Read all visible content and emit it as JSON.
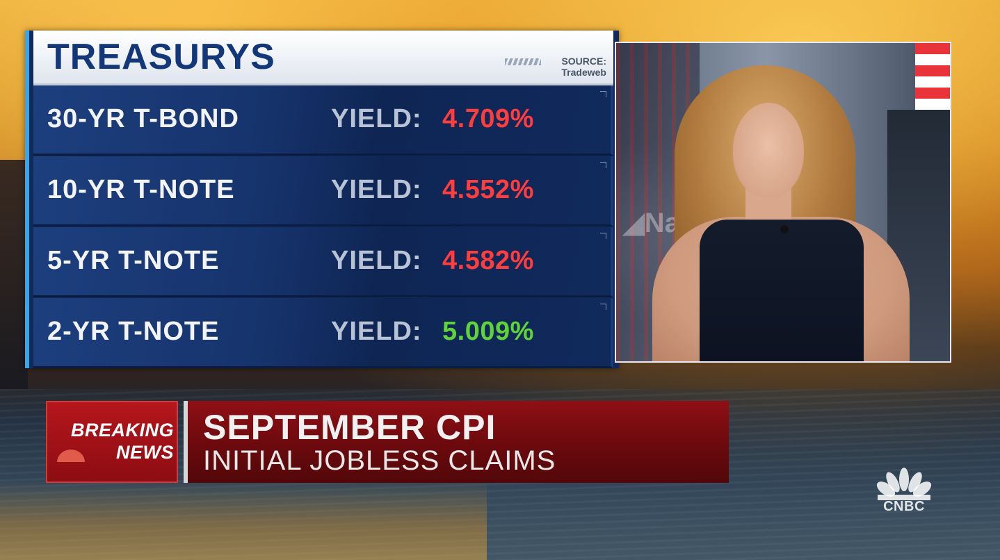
{
  "treasurys": {
    "title": "TREASURYS",
    "source_label": "SOURCE:",
    "source_name": "Tradeweb",
    "yield_label": "YIELD:",
    "rows": [
      {
        "name": "30-YR T-BOND",
        "yield_label": "YIELD:",
        "value": "4.709%",
        "direction": "down",
        "color": "#ff3d3d"
      },
      {
        "name": "10-YR T-NOTE",
        "yield_label": "YIELD:",
        "value": "4.552%",
        "direction": "down",
        "color": "#ff3d3d"
      },
      {
        "name": "5-YR T-NOTE",
        "yield_label": "YIELD:",
        "value": "4.582%",
        "direction": "down",
        "color": "#ff3d3d"
      },
      {
        "name": "2-YR T-NOTE",
        "yield_label": "YIELD:",
        "value": "5.009%",
        "direction": "up",
        "color": "#5fd43a"
      }
    ]
  },
  "lower_third": {
    "badge_line1": "BREAKING",
    "badge_line2": "NEWS",
    "headline": "SEPTEMBER CPI",
    "subheadline": "INITIAL JOBLESS CLAIMS"
  },
  "network": {
    "logo_text": "CNBC",
    "logo_icon": "peacock-icon"
  },
  "colors": {
    "board_blue": "#13387a",
    "accent_blue": "#3ba3e6",
    "breaking_red": "#b5161c",
    "negative": "#ff3d3d",
    "positive": "#5fd43a"
  }
}
